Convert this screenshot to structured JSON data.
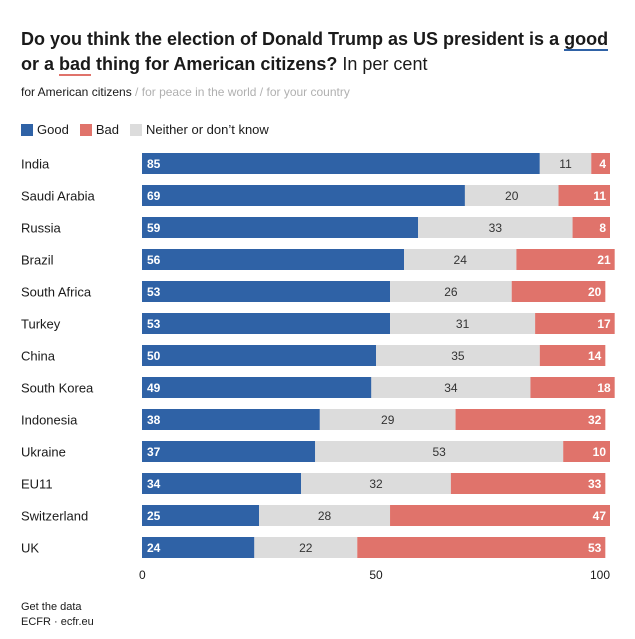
{
  "title": {
    "part1": "Do you think the election of Donald Trump as US president is a ",
    "good": "good",
    "part2": " or a ",
    "bad": "bad",
    "part3": " thing for American citizens?",
    "unit": " In per cent"
  },
  "tabs": {
    "active": "for American citizens",
    "sep1": " / ",
    "second": "for peace in the world",
    "sep2": " / ",
    "third": "for your country"
  },
  "legend": [
    {
      "label": "Good",
      "color": "#2f62a6"
    },
    {
      "label": "Bad",
      "color": "#e0736b"
    },
    {
      "label": "Neither or don’t know",
      "color": "#dcdcdc"
    }
  ],
  "footer": {
    "line1": "Get the data",
    "line2": "ECFR · ecfr.eu"
  },
  "colors": {
    "good": "#2f62a6",
    "neither": "#dcdcdc",
    "bad": "#e0736b",
    "good_text": "#ffffff",
    "neither_text": "#333333",
    "bad_text": "#ffffff"
  },
  "chart_data": {
    "type": "bar",
    "orientation": "horizontal",
    "stacked": true,
    "categories": [
      "India",
      "Saudi Arabia",
      "Russia",
      "Brazil",
      "South Africa",
      "Turkey",
      "China",
      "South Korea",
      "Indonesia",
      "Ukraine",
      "EU11",
      "Switzerland",
      "UK"
    ],
    "series": [
      {
        "name": "Good",
        "values": [
          85,
          69,
          59,
          56,
          53,
          53,
          50,
          49,
          38,
          37,
          34,
          25,
          24
        ]
      },
      {
        "name": "Neither or don’t know",
        "values": [
          11,
          20,
          33,
          24,
          26,
          31,
          35,
          34,
          29,
          53,
          32,
          28,
          22
        ]
      },
      {
        "name": "Bad",
        "values": [
          4,
          11,
          8,
          21,
          20,
          17,
          14,
          18,
          32,
          10,
          33,
          47,
          53
        ]
      }
    ],
    "x_ticks": [
      "0",
      "50",
      "100"
    ],
    "xlim": [
      0,
      100
    ],
    "grid": false,
    "legend_position": "top-left"
  }
}
